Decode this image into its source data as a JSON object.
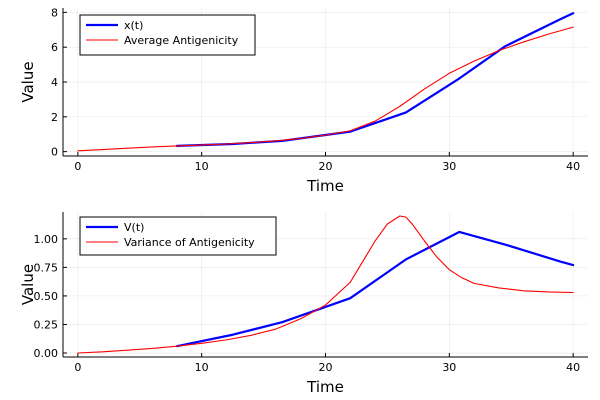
{
  "chart_data": [
    {
      "type": "line",
      "xlabel": "Time",
      "ylabel": "Value",
      "xlim": [
        -1.2,
        41.2
      ],
      "ylim": [
        -0.25,
        8.25
      ],
      "xticks": [
        0,
        10,
        20,
        30,
        40
      ],
      "yticks": [
        0,
        2,
        4,
        6,
        8
      ],
      "xtick_labels": [
        "0",
        "10",
        "20",
        "30",
        "40"
      ],
      "ytick_labels": [
        "0",
        "2",
        "4",
        "6",
        "8"
      ],
      "grid": true,
      "legend_position": "top-left",
      "series": [
        {
          "name": "x(t)",
          "color": "#0000ff",
          "x": [
            8,
            12.5,
            16.5,
            22,
            26.5,
            30.8,
            34.5,
            39,
            40
          ],
          "y": [
            0.33,
            0.44,
            0.62,
            1.15,
            2.25,
            4.2,
            6.05,
            7.62,
            7.95
          ]
        },
        {
          "name": "Average Antigenicity",
          "color": "#ff0000",
          "x": [
            0,
            2,
            4,
            6,
            8,
            10,
            12,
            14,
            16,
            18,
            20,
            22,
            24,
            26,
            28,
            30,
            32,
            34,
            36,
            38,
            40
          ],
          "y": [
            0.05,
            0.12,
            0.2,
            0.27,
            0.33,
            0.38,
            0.44,
            0.52,
            0.62,
            0.76,
            0.95,
            1.2,
            1.75,
            2.6,
            3.6,
            4.5,
            5.2,
            5.8,
            6.3,
            6.75,
            7.15
          ]
        }
      ]
    },
    {
      "type": "line",
      "xlabel": "Time",
      "ylabel": "Value",
      "xlim": [
        -1.2,
        41.2
      ],
      "ylim": [
        -0.035,
        1.235
      ],
      "xticks": [
        0,
        10,
        20,
        30,
        40
      ],
      "yticks": [
        0,
        0.25,
        0.5,
        0.75,
        1.0
      ],
      "xtick_labels": [
        "0",
        "10",
        "20",
        "30",
        "40"
      ],
      "ytick_labels": [
        "0.00",
        "0.25",
        "0.50",
        "0.75",
        "1.00"
      ],
      "grid": true,
      "legend_position": "top-left",
      "series": [
        {
          "name": "V(t)",
          "color": "#0000ff",
          "x": [
            8,
            12.5,
            16.5,
            22,
            26.5,
            30.8,
            34.5,
            39,
            40
          ],
          "y": [
            0.06,
            0.16,
            0.27,
            0.48,
            0.82,
            1.06,
            0.95,
            0.8,
            0.77
          ]
        },
        {
          "name": "Variance of Antigenicity",
          "color": "#ff0000",
          "x": [
            0,
            2,
            4,
            6,
            8,
            10,
            12,
            14,
            16,
            18,
            20,
            22,
            23,
            24,
            25,
            26,
            26.5,
            27,
            28,
            29,
            30,
            31,
            32,
            34,
            36,
            38,
            40
          ],
          "y": [
            0.0,
            0.01,
            0.025,
            0.04,
            0.06,
            0.085,
            0.115,
            0.155,
            0.21,
            0.3,
            0.42,
            0.62,
            0.8,
            0.98,
            1.13,
            1.2,
            1.19,
            1.13,
            0.98,
            0.84,
            0.73,
            0.66,
            0.61,
            0.57,
            0.545,
            0.535,
            0.53
          ]
        }
      ]
    }
  ]
}
